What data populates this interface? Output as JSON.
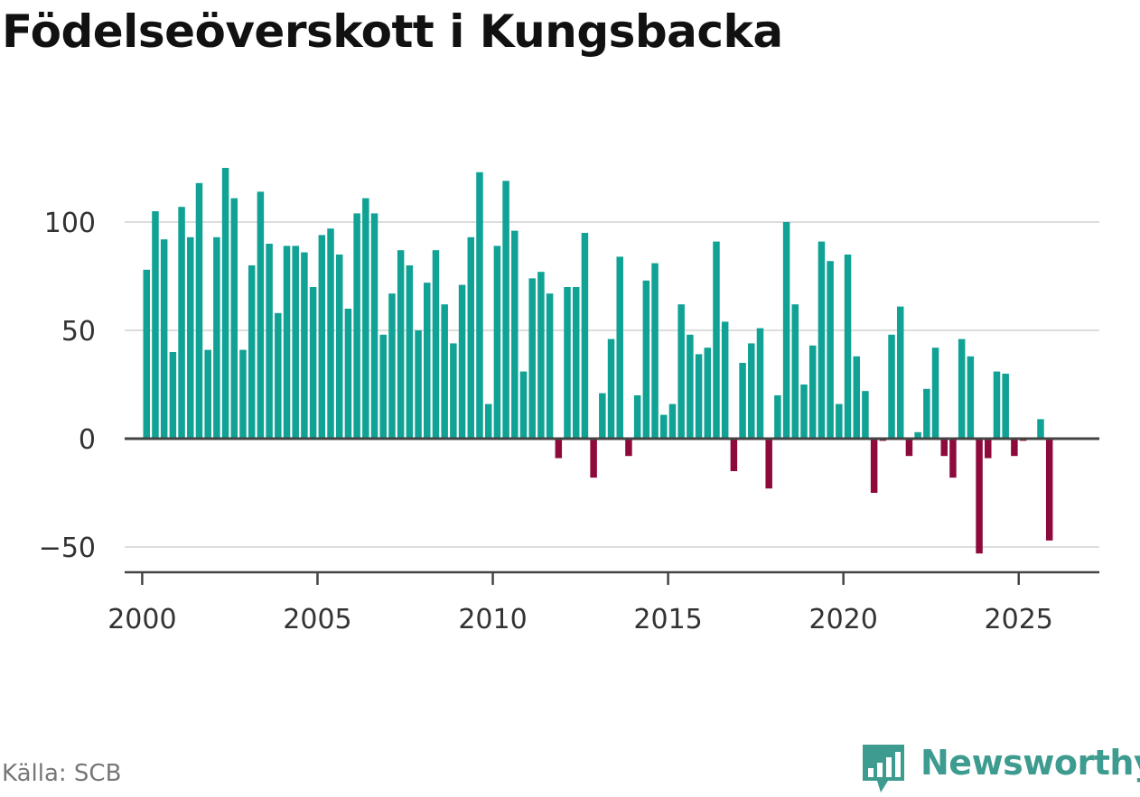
{
  "title": "Födelseöverskott i Kungsbacka",
  "source": "Källa: SCB",
  "brand": "Newsworthy",
  "colors": {
    "positive": "#10a294",
    "negative": "#8f0a3c",
    "brand": "#3d9b8f",
    "grid": "#dddddd",
    "axis": "#444444"
  },
  "chart_data": {
    "type": "bar",
    "title": "Födelseöverskott i Kungsbacka",
    "xlabel": "",
    "ylabel": "",
    "ylim": [
      -55,
      140
    ],
    "xlim": [
      1999.5,
      2027.3
    ],
    "yticks": [
      -50,
      0,
      50,
      100
    ],
    "ytick_labels": [
      "−50",
      "0",
      "50",
      "100"
    ],
    "xticks": [
      2000,
      2005,
      2010,
      2015,
      2020,
      2025
    ],
    "xtick_labels": [
      "2000",
      "2005",
      "2010",
      "2015",
      "2020",
      "2025"
    ],
    "grid": true,
    "start_year": 2000,
    "start_quarter": 1,
    "values": [
      78,
      105,
      92,
      40,
      107,
      93,
      118,
      41,
      93,
      125,
      111,
      41,
      80,
      114,
      90,
      58,
      89,
      89,
      86,
      70,
      94,
      97,
      85,
      60,
      104,
      111,
      104,
      48,
      67,
      87,
      80,
      50,
      72,
      87,
      62,
      44,
      71,
      93,
      123,
      16,
      89,
      119,
      96,
      31,
      74,
      77,
      67,
      -9,
      70,
      70,
      95,
      -18,
      21,
      46,
      84,
      -8,
      20,
      73,
      81,
      11,
      16,
      62,
      48,
      39,
      42,
      91,
      54,
      -15,
      35,
      44,
      51,
      -23,
      20,
      100,
      62,
      25,
      43,
      91,
      82,
      16,
      85,
      38,
      22,
      -25,
      -1,
      48,
      61,
      -8,
      3,
      23,
      42,
      -8,
      -18,
      46,
      38,
      -53,
      -9,
      31,
      30,
      -8,
      -1,
      0,
      9,
      -47
    ]
  }
}
